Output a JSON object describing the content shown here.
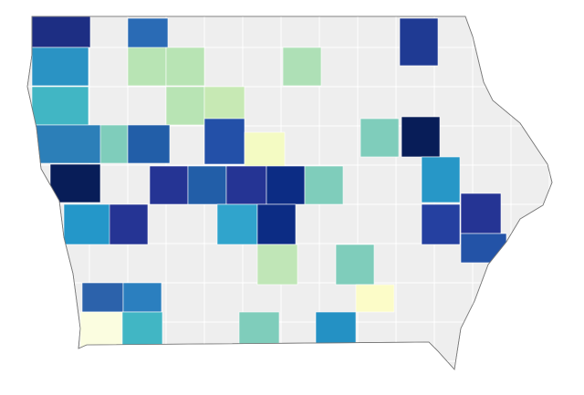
{
  "map": {
    "base_color": "#eeeeee",
    "border_color": "#ffffff",
    "region_colors": [
      "#1d2e83",
      "#2a6bb5",
      "#1f3a93",
      "#2a93c4",
      "#b8e4b4",
      "#b8e4b4",
      "#aee0b6",
      "#41b6c4",
      "#b8e4b4",
      "#c7e9b4",
      "#2c7fb8",
      "#7fcdbb",
      "#225ea8",
      "#2350a8",
      "#f4fbc3",
      "#7fcdbb",
      "#081d58",
      "#081d58",
      "#253494",
      "#225ea8",
      "#253494",
      "#0c2c84",
      "#7fcdbb",
      "#2797c7",
      "#2497c9",
      "#253494",
      "#30a4cc",
      "#0c2c84",
      "#2540a0",
      "#253494",
      "#2353a7",
      "#c0e6b7",
      "#7fcdbb",
      "#2c62ab",
      "#2b7fbf",
      "#fcfcc8",
      "#fbfde0",
      "#41b6c4",
      "#7fcdbb",
      "#2491c4"
    ]
  }
}
